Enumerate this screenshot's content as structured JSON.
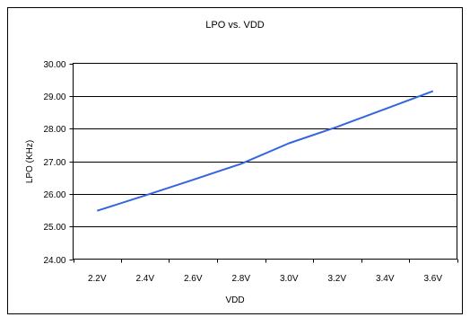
{
  "chart_data": {
    "type": "line",
    "title": "LPO vs. VDD",
    "xlabel": "VDD",
    "ylabel": "LPO (KHz)",
    "categories": [
      "2.2V",
      "2.4V",
      "2.6V",
      "2.8V",
      "3.0V",
      "3.2V",
      "3.4V",
      "3.6V"
    ],
    "x": [
      2.2,
      2.4,
      2.6,
      2.8,
      3.0,
      3.2,
      3.4,
      3.6
    ],
    "y_ticks": [
      "24.00",
      "25.00",
      "26.00",
      "27.00",
      "28.00",
      "29.00",
      "30.00"
    ],
    "ylim": [
      24.0,
      30.0
    ],
    "grid": true,
    "series": [
      {
        "values": [
          25.48,
          25.95,
          26.43,
          26.92,
          27.55,
          28.05,
          28.6,
          29.15
        ],
        "color": "#3366dd"
      }
    ]
  }
}
